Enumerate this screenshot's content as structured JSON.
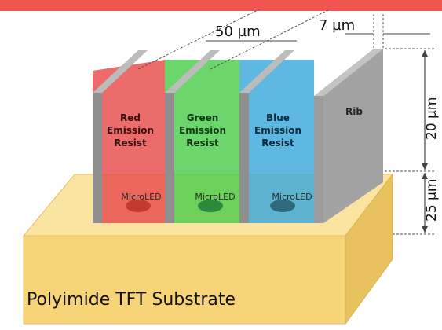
{
  "dimensions": {
    "pitch": "50 µm",
    "rib_width": "7 µm",
    "rib_height": "20 µm",
    "led_height": "25 µm"
  },
  "cells": [
    {
      "line1": "Red",
      "line2": "Emission",
      "line3": "Resist",
      "led": "MicroLED",
      "color": "#e84c4c"
    },
    {
      "line1": "Green",
      "line2": "Emission",
      "line3": "Resist",
      "led": "MicroLED",
      "color": "#4ccc4c"
    },
    {
      "line1": "Blue",
      "line2": "Emission",
      "line3": "Resist",
      "led": "MicroLED",
      "color": "#3aa8dc"
    }
  ],
  "rib_label": "Rib",
  "substrate_label": "Polyimide TFT Substrate",
  "colors": {
    "top_bar": "#f0554f",
    "substrate": "#f7d478",
    "rib": "#9c9c9c"
  }
}
